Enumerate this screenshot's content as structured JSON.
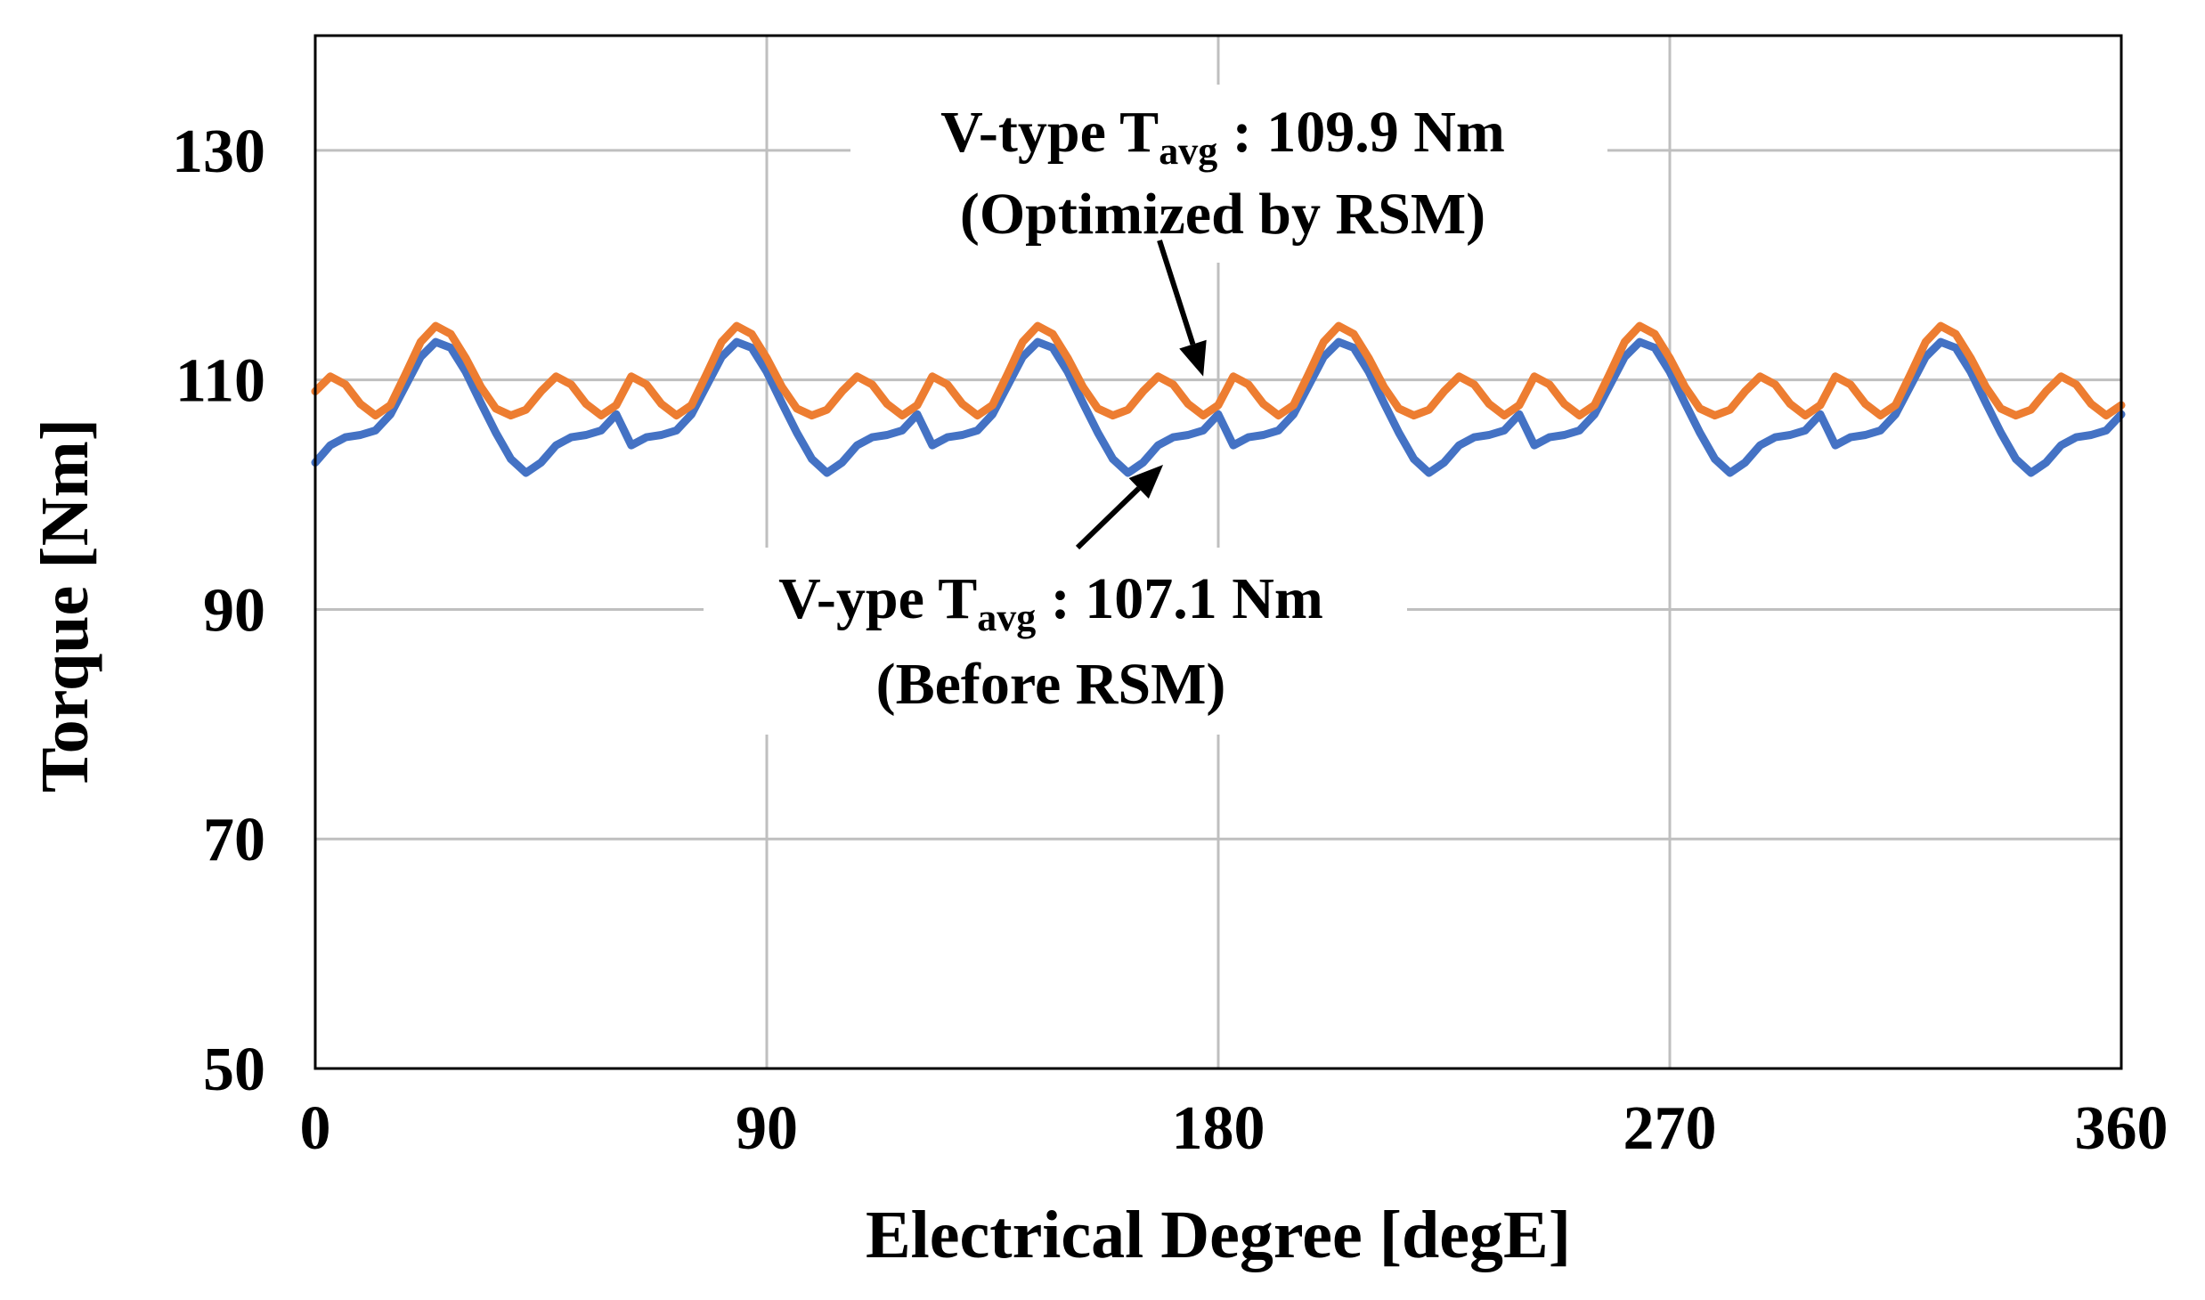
{
  "chart_data": {
    "type": "line",
    "title": "",
    "xlabel": "Electrical Degree [degE]",
    "ylabel": "Torque [Nm]",
    "xlim": [
      0,
      360
    ],
    "ylim": [
      50,
      140
    ],
    "xticks": [
      "0",
      "90",
      "180",
      "270",
      "360"
    ],
    "yticks": [
      "50",
      "70",
      "90",
      "110",
      "130"
    ],
    "xtick_values": [
      0,
      90,
      180,
      270,
      360
    ],
    "ytick_values": [
      50,
      70,
      90,
      110,
      130
    ],
    "grid": true,
    "series": [
      {
        "name": "Before RSM",
        "color": "#4472c4",
        "x": [
          0,
          3,
          6,
          9,
          12,
          15,
          18,
          21,
          24,
          27,
          30,
          33,
          36,
          39,
          42,
          45,
          48,
          51,
          54,
          57,
          60
        ],
        "y": [
          102.8,
          104.3,
          105.0,
          105.2,
          105.6,
          107.0,
          109.5,
          112.0,
          113.3,
          112.8,
          110.7,
          108.0,
          105.4,
          103.1,
          101.9,
          102.8,
          104.3,
          105.0,
          105.2,
          105.6,
          107.0
        ],
        "period": 60
      },
      {
        "name": "Optimized by RSM",
        "color": "#ed7d31",
        "x": [
          0,
          3,
          6,
          9,
          12,
          15,
          18,
          21,
          24,
          27,
          30,
          33,
          36,
          39,
          42,
          45,
          48,
          51,
          54,
          57,
          60
        ],
        "y": [
          109.0,
          110.3,
          109.6,
          107.9,
          106.9,
          107.8,
          110.5,
          113.3,
          114.7,
          114.0,
          111.9,
          109.4,
          107.5,
          106.9,
          107.4,
          109.0,
          110.3,
          109.6,
          107.9,
          106.9,
          107.8
        ],
        "period": 60
      }
    ],
    "annotations": [
      {
        "id": "optimized",
        "line1_prefix": "V-type T",
        "subscript": "avg",
        "line1_suffix": " : 109.9 Nm",
        "line2": "(Optimized by RSM)",
        "arrow_to": [
          177,
          110.3
        ]
      },
      {
        "id": "before",
        "line1_prefix": "V-ype T",
        "subscript": "avg",
        "line1_suffix": " : 107.1 Nm",
        "line2": "(Before RSM)",
        "arrow_to": [
          169,
          102.6
        ]
      }
    ]
  }
}
